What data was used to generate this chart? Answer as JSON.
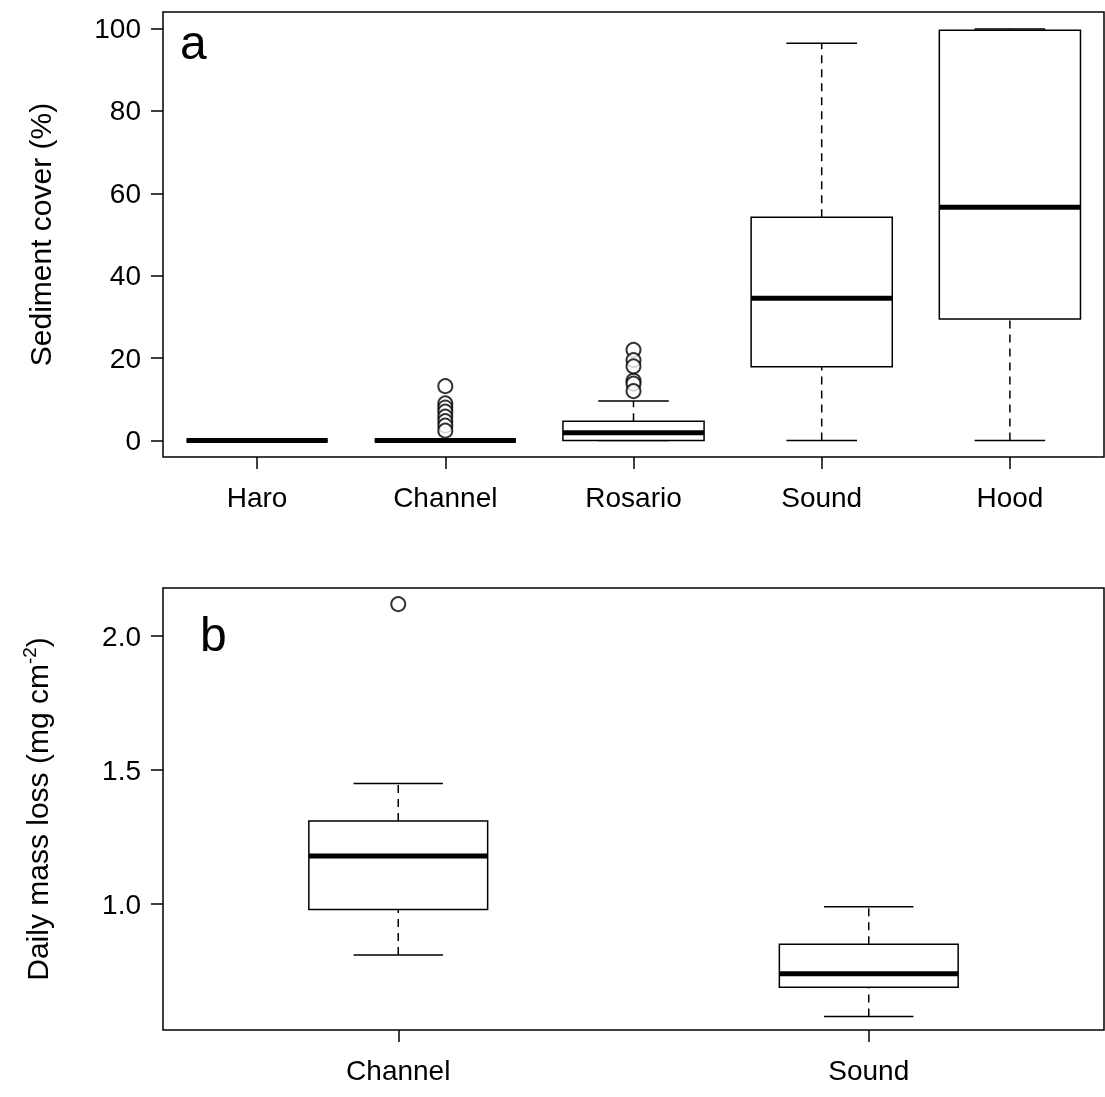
{
  "chart_data": [
    {
      "type": "box",
      "ylabel": "Sediment cover (%)",
      "annotations": [
        "a"
      ],
      "categories": [
        "Haro",
        "Channel",
        "Rosario",
        "Sound",
        "Hood"
      ],
      "boxes": [
        {
          "low": 0,
          "q1": 0,
          "median": 0,
          "q3": 0,
          "high": 0
        },
        {
          "low": 0,
          "q1": 0,
          "median": 0,
          "q3": 0,
          "high": 0,
          "outliers": [
            13.2,
            9.0,
            8.0,
            7.0,
            5.8,
            4.7,
            3.6,
            2.4
          ]
        },
        {
          "low": 0,
          "q1": 0,
          "median": 1.9,
          "q3": 4.7,
          "high": 9.6,
          "outliers": [
            22,
            19.5,
            18,
            14.5,
            13.8,
            12
          ]
        },
        {
          "low": 0,
          "q1": 17.9,
          "median": 34.5,
          "q3": 54.2,
          "high": 96.4
        },
        {
          "low": 0,
          "q1": 29.5,
          "median": 56.6,
          "q3": 99.6,
          "high": 99.9
        }
      ],
      "ylim": [
        -4,
        104
      ],
      "yticks": [
        0,
        20,
        40,
        60,
        80,
        100
      ],
      "grid": false
    },
    {
      "type": "box",
      "ylabel": "Daily mass loss (mg cm$^{-2}$)",
      "annotations": [
        "b"
      ],
      "categories": [
        "Channel",
        "Sound"
      ],
      "boxes": [
        {
          "low": 0.81,
          "q1": 0.98,
          "median": 1.18,
          "q3": 1.31,
          "high": 1.45,
          "outliers": [
            2.12
          ]
        },
        {
          "low": 0.58,
          "q1": 0.69,
          "median": 0.74,
          "q3": 0.85,
          "high": 0.99
        }
      ],
      "ylim": [
        0.53,
        2.18
      ],
      "yticks": [
        {
          "value": 1,
          "label": "1.0"
        },
        {
          "value": 1.5,
          "label": "1.5"
        },
        {
          "value": 2,
          "label": "2.0"
        }
      ],
      "grid": false
    }
  ]
}
